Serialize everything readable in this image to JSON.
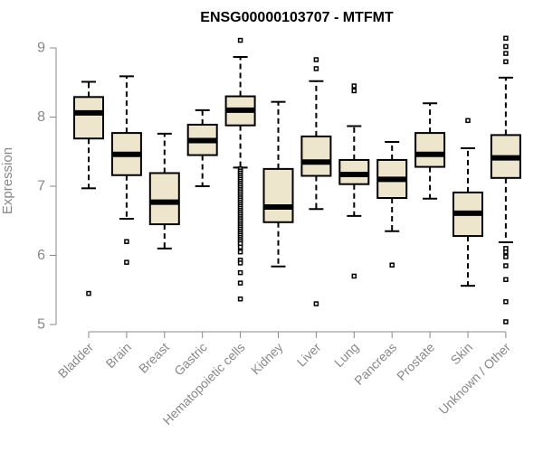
{
  "chart_data": {
    "type": "boxplot",
    "title": "ENSG00000103707 - MTFMT",
    "xlabel": "",
    "ylabel": "Expression",
    "ylim": [
      5,
      9.1
    ],
    "yticks": [
      5,
      6,
      7,
      8,
      9
    ],
    "colors": {
      "box_fill": "#ede6cd",
      "stroke": "#000000",
      "axis": "#888888"
    },
    "categories": [
      "Bladder",
      "Brain",
      "Breast",
      "Gastric",
      "Hematopoietic cells",
      "Kidney",
      "Liver",
      "Lung",
      "Pancreas",
      "Prostate",
      "Skin",
      "Unknown / Other"
    ],
    "boxes": [
      {
        "name": "Bladder",
        "whisker_low": 6.97,
        "q1": 7.69,
        "median": 8.06,
        "q3": 8.29,
        "whisker_high": 8.51,
        "outliers": [
          5.45
        ]
      },
      {
        "name": "Brain",
        "whisker_low": 6.53,
        "q1": 7.16,
        "median": 7.46,
        "q3": 7.77,
        "whisker_high": 8.59,
        "outliers": [
          6.2,
          5.9
        ]
      },
      {
        "name": "Breast",
        "whisker_low": 6.1,
        "q1": 6.45,
        "median": 6.77,
        "q3": 7.19,
        "whisker_high": 7.76,
        "outliers": []
      },
      {
        "name": "Gastric",
        "whisker_low": 7.0,
        "q1": 7.45,
        "median": 7.66,
        "q3": 7.89,
        "whisker_high": 8.1,
        "outliers": []
      },
      {
        "name": "Hematopoietic cells",
        "whisker_low": 7.27,
        "q1": 7.88,
        "median": 8.1,
        "q3": 8.3,
        "whisker_high": 8.87,
        "outliers": [
          9.11,
          7.25,
          7.22,
          7.19,
          7.16,
          7.13,
          7.1,
          7.07,
          7.04,
          7.01,
          6.98,
          6.95,
          6.92,
          6.89,
          6.86,
          6.83,
          6.8,
          6.77,
          6.74,
          6.71,
          6.68,
          6.65,
          6.62,
          6.59,
          6.56,
          6.53,
          6.5,
          6.47,
          6.44,
          6.41,
          6.38,
          6.35,
          6.32,
          6.29,
          6.26,
          6.23,
          6.2,
          6.17,
          6.12,
          6.05,
          5.93,
          5.89,
          5.75,
          5.6,
          5.37
        ]
      },
      {
        "name": "Kidney",
        "whisker_low": 5.84,
        "q1": 6.48,
        "median": 6.7,
        "q3": 7.25,
        "whisker_high": 8.22,
        "outliers": []
      },
      {
        "name": "Liver",
        "whisker_low": 6.67,
        "q1": 7.15,
        "median": 7.35,
        "q3": 7.72,
        "whisker_high": 8.52,
        "outliers": [
          8.7,
          8.83,
          5.3
        ]
      },
      {
        "name": "Lung",
        "whisker_low": 6.57,
        "q1": 7.03,
        "median": 7.17,
        "q3": 7.38,
        "whisker_high": 7.87,
        "outliers": [
          8.38,
          8.45,
          5.7
        ]
      },
      {
        "name": "Pancreas",
        "whisker_low": 6.35,
        "q1": 6.83,
        "median": 7.1,
        "q3": 7.38,
        "whisker_high": 7.64,
        "outliers": [
          5.86
        ]
      },
      {
        "name": "Prostate",
        "whisker_low": 6.82,
        "q1": 7.28,
        "median": 7.46,
        "q3": 7.77,
        "whisker_high": 8.2,
        "outliers": []
      },
      {
        "name": "Skin",
        "whisker_low": 5.56,
        "q1": 6.28,
        "median": 6.61,
        "q3": 6.91,
        "whisker_high": 7.55,
        "outliers": [
          7.95
        ]
      },
      {
        "name": "Unknown / Other",
        "whisker_low": 6.19,
        "q1": 7.12,
        "median": 7.41,
        "q3": 7.74,
        "whisker_high": 8.57,
        "outliers": [
          9.14,
          9.02,
          8.92,
          8.8,
          6.1,
          6.05,
          5.98,
          5.85,
          5.65,
          5.33,
          5.04
        ]
      }
    ]
  }
}
